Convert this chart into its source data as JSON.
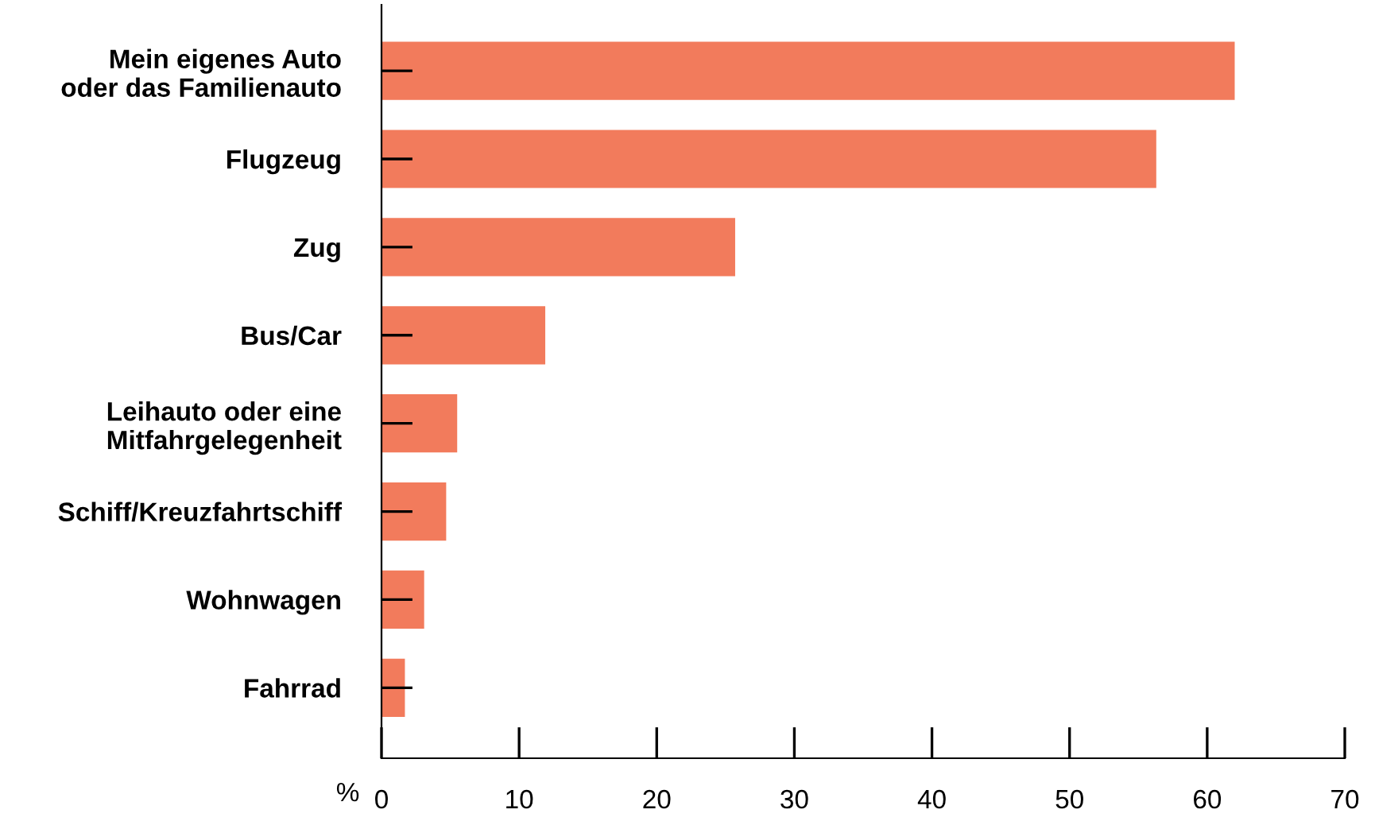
{
  "chart_data": {
    "type": "bar",
    "orientation": "horizontal",
    "xlabel": "%",
    "categories": [
      "Mein eigenes Auto\noder das Familienauto",
      "Flugzeug",
      "Zug",
      "Bus/Car",
      "Leihauto oder eine\nMitfahrgelegenheit",
      "Schiff/Kreuzfahrtschiff",
      "Wohnwagen",
      "Fahrrad"
    ],
    "values": [
      62.0,
      56.3,
      25.7,
      11.9,
      5.5,
      4.7,
      3.1,
      1.7
    ],
    "color": "#f27b5c",
    "xlim": [
      0,
      70
    ],
    "xticks": [
      0,
      10,
      20,
      30,
      40,
      50,
      60,
      70
    ],
    "grid": false,
    "legend": false
  }
}
